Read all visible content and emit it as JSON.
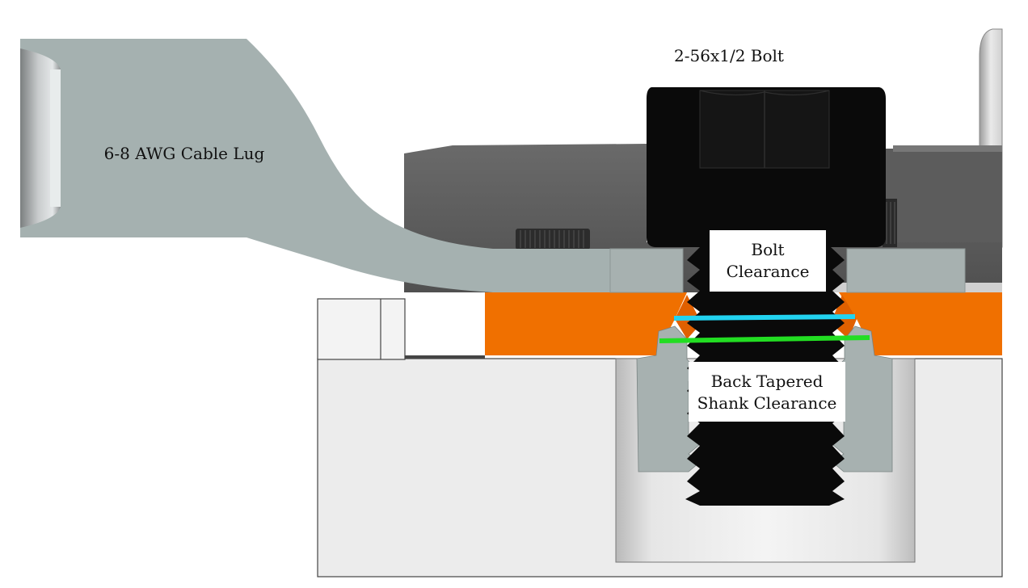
{
  "labels": {
    "bolt": "2-56x1/2 Bolt",
    "lug": "6-8 AWG Cable Lug",
    "bolt_clearance_line1": "Bolt",
    "bolt_clearance_line2": "Clearance",
    "shank_clearance_line1": "Back Tapered",
    "shank_clearance_line2": "Shank Clearance"
  },
  "colors": {
    "lug": "#a5b1b0",
    "orange_plate": "#f07000",
    "cyan_line": "#22d3f0",
    "green_line": "#22dd22",
    "bolt": "#0a0a0a",
    "base_block": "#ececec"
  }
}
